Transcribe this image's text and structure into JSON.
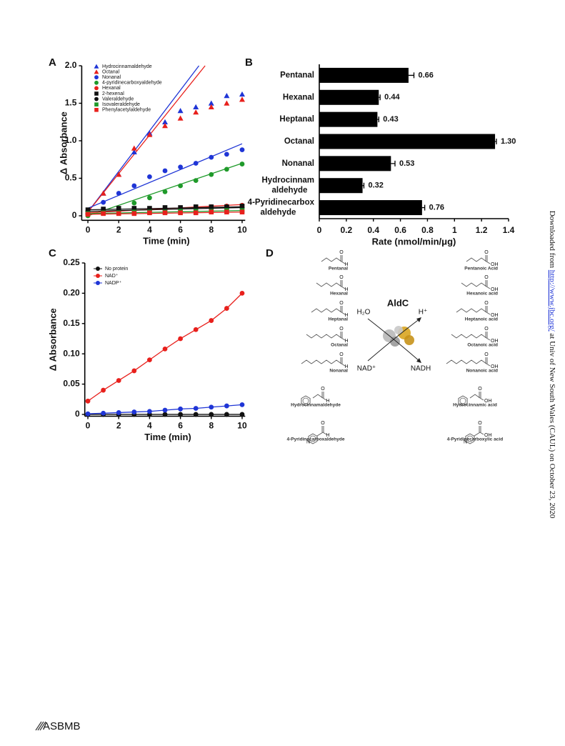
{
  "chart_data": [
    {
      "type": "scatter",
      "label": "A",
      "x": [
        0,
        1,
        2,
        3,
        4,
        5,
        6,
        7,
        8,
        9,
        10
      ],
      "series": [
        {
          "name": "Hydrocinnamaldehyde",
          "color": "#1f35d6",
          "marker": "triangle",
          "values": [
            0.05,
            0.3,
            0.55,
            0.85,
            1.1,
            1.25,
            1.4,
            1.45,
            1.5,
            1.6,
            1.62
          ]
        },
        {
          "name": "Octanal",
          "color": "#e8201c",
          "marker": "triangle",
          "values": [
            0.05,
            0.3,
            0.55,
            0.9,
            1.08,
            1.2,
            1.3,
            1.38,
            1.45,
            1.5,
            1.55
          ]
        },
        {
          "name": "Nonanal",
          "color": "#1f35d6",
          "marker": "circle",
          "values": [
            0.05,
            0.18,
            0.3,
            0.4,
            0.52,
            0.6,
            0.65,
            0.7,
            0.78,
            0.82,
            0.88
          ]
        },
        {
          "name": "4-pyridinecarboxyaldehyde",
          "color": "#1f9a2a",
          "marker": "circle",
          "values": [
            0.0,
            0.05,
            0.1,
            0.17,
            0.24,
            0.32,
            0.4,
            0.47,
            0.55,
            0.62,
            0.69
          ]
        },
        {
          "name": "Hexanal",
          "color": "#e8201c",
          "marker": "circle",
          "values": [
            0.03,
            0.05,
            0.06,
            0.07,
            0.08,
            0.09,
            0.1,
            0.11,
            0.12,
            0.13,
            0.14
          ]
        },
        {
          "name": "2-hexenal",
          "color": "#111111",
          "marker": "square",
          "values": [
            0.08,
            0.09,
            0.1,
            0.1,
            0.1,
            0.11,
            0.11,
            0.12,
            0.12,
            0.12,
            0.13
          ]
        },
        {
          "name": "Valeraldehyde",
          "color": "#111111",
          "marker": "circle",
          "values": [
            0.06,
            0.07,
            0.08,
            0.08,
            0.09,
            0.09,
            0.1,
            0.1,
            0.1,
            0.11,
            0.11
          ]
        },
        {
          "name": "Isovaleraldehyde",
          "color": "#1f9a2a",
          "marker": "square",
          "values": [
            0.03,
            0.04,
            0.04,
            0.05,
            0.05,
            0.05,
            0.06,
            0.06,
            0.06,
            0.07,
            0.07
          ]
        },
        {
          "name": "Phenylacetylaldehyde",
          "color": "#e8201c",
          "marker": "square",
          "values": [
            0.02,
            0.03,
            0.03,
            0.03,
            0.04,
            0.04,
            0.04,
            0.04,
            0.05,
            0.05,
            0.05
          ]
        }
      ],
      "fit_lines": [
        {
          "color": "#1f35d6",
          "x": [
            0,
            7.2
          ],
          "values": [
            0.05,
            2.0
          ]
        },
        {
          "color": "#e8201c",
          "x": [
            0,
            7.6
          ],
          "values": [
            0.05,
            2.0
          ]
        },
        {
          "color": "#1f35d6",
          "x": [
            0,
            10
          ],
          "values": [
            0.1,
            0.96
          ]
        },
        {
          "color": "#1f9a2a",
          "x": [
            0,
            10
          ],
          "values": [
            0.0,
            0.7
          ]
        },
        {
          "color": "#e8201c",
          "x": [
            0,
            10
          ],
          "values": [
            0.04,
            0.15
          ]
        },
        {
          "color": "#111111",
          "x": [
            0,
            10
          ],
          "values": [
            0.08,
            0.12
          ]
        },
        {
          "color": "#111111",
          "x": [
            0,
            10
          ],
          "values": [
            0.06,
            0.11
          ]
        },
        {
          "color": "#1f9a2a",
          "x": [
            0,
            10
          ],
          "values": [
            0.03,
            0.07
          ]
        },
        {
          "color": "#e8201c",
          "x": [
            0,
            10
          ],
          "values": [
            0.02,
            0.05
          ]
        }
      ],
      "xlim": [
        -0.4,
        10.2
      ],
      "ylim": [
        -0.06,
        2.0
      ],
      "xticks": [
        0,
        2,
        4,
        6,
        8,
        10
      ],
      "yticks": [
        0,
        0.5,
        {
          "value": 1,
          "label": "1.0"
        },
        1.5,
        {
          "value": 2,
          "label": "2.0"
        }
      ],
      "x_label": "Time (min)",
      "y_label": "Δ Absorbance"
    },
    {
      "type": "hbar",
      "label": "B",
      "categories": [
        "Pentanal",
        "Hexanal",
        "Heptanal",
        "Octanal",
        "Nonanal",
        "Hydrocinnam\naldehyde",
        "4-Pyridinecarbox\naldehyde"
      ],
      "values": [
        0.66,
        0.44,
        0.43,
        1.3,
        0.53,
        0.32,
        0.76
      ],
      "value_labels": [
        "0.66",
        "0.44",
        "0.43",
        "1.30",
        "0.53",
        "0.32",
        "0.76"
      ],
      "errors": [
        0.04,
        0.01,
        0.01,
        0.01,
        0.03,
        0.01,
        0.02
      ],
      "color": "#000000",
      "xlim": [
        0,
        1.4
      ],
      "xticks": [
        0,
        0.2,
        0.4,
        0.6,
        0.8,
        1,
        1.2,
        1.4
      ],
      "x_label": "Rate (nmol/min/μg)"
    },
    {
      "type": "line",
      "label": "C",
      "x": [
        0,
        1,
        2,
        3,
        4,
        5,
        6,
        7,
        8,
        9,
        10
      ],
      "series": [
        {
          "name": "No protein",
          "color": "#111111",
          "values": [
            0,
            0,
            0,
            0,
            0,
            0,
            0,
            0,
            0,
            0,
            0
          ]
        },
        {
          "name": "NAD⁺",
          "color": "#e8201c",
          "values": [
            0.022,
            0.04,
            0.056,
            0.072,
            0.09,
            0.108,
            0.125,
            0.14,
            0.155,
            0.175,
            0.2
          ]
        },
        {
          "name": "NADP⁺",
          "color": "#1f35d6",
          "values": [
            0.001,
            0.002,
            0.003,
            0.004,
            0.005,
            0.007,
            0.009,
            0.01,
            0.012,
            0.014,
            0.016
          ]
        }
      ],
      "xlim": [
        -0.2,
        10.2
      ],
      "ylim": [
        -0.003,
        0.25
      ],
      "xticks": [
        0,
        2,
        4,
        6,
        8,
        10
      ],
      "yticks": [
        0,
        0.05,
        {
          "value": 0.1,
          "label": "0.10"
        },
        0.15,
        {
          "value": 0.2,
          "label": "0.20"
        },
        0.25
      ],
      "x_label": "Time (min)",
      "y_label": "Δ Absorbance"
    }
  ],
  "diagram": {
    "label": "D",
    "substrates": [
      "Pentanal",
      "Hexanal",
      "Heptanal",
      "Octanal",
      "Nonanal",
      "Hydrocinnamaldehyde",
      "4-Pyridinecarboxaldehyde"
    ],
    "products": [
      "Pentanoic Acid",
      "Hexanoic acid",
      "Heptanoic acid",
      "Octanoic acid",
      "Nonanoic acid",
      "Hydrocinnamic acid",
      "4-Pyridinecarboxylic acid"
    ],
    "enzyme": "AldC",
    "inputs": [
      "H₂O",
      "NAD⁺"
    ],
    "outputs": [
      "H⁺",
      "NADH"
    ],
    "atom_labels": {
      "oxygen": "O",
      "hydrogen": "H",
      "hydroxyl": "OH",
      "nitrogen": "N"
    }
  },
  "footer": {
    "side_text": [
      "Downloaded from ",
      "http://www.jbc.org/",
      " at Univ of New South Wales (CAUL) on October 23, 2020"
    ],
    "logo": "ASBMB"
  }
}
